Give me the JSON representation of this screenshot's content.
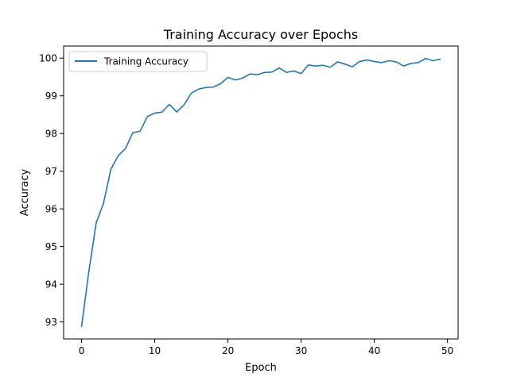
{
  "chart_data": {
    "type": "line",
    "title": "Training Accuracy over Epochs",
    "xlabel": "Epoch",
    "ylabel": "Accuracy",
    "xlim": [
      -2.45,
      51.45
    ],
    "ylim": [
      92.55,
      100.32
    ],
    "xticks": [
      0,
      10,
      20,
      30,
      40,
      50
    ],
    "yticks": [
      93,
      94,
      95,
      96,
      97,
      98,
      99,
      100
    ],
    "grid": false,
    "legend_position": "top-left",
    "series": [
      {
        "name": "Training Accuracy",
        "color": "#1f77b4",
        "x": [
          0,
          1,
          2,
          3,
          4,
          5,
          6,
          7,
          8,
          9,
          10,
          11,
          12,
          13,
          14,
          15,
          16,
          17,
          18,
          19,
          20,
          21,
          22,
          23,
          24,
          25,
          26,
          27,
          28,
          29,
          30,
          31,
          32,
          33,
          34,
          35,
          36,
          37,
          38,
          39,
          40,
          41,
          42,
          43,
          44,
          45,
          46,
          47,
          48,
          49
        ],
        "y": [
          92.88,
          94.35,
          95.63,
          96.15,
          97.05,
          97.41,
          97.6,
          98.02,
          98.06,
          98.45,
          98.54,
          98.57,
          98.77,
          98.57,
          98.76,
          99.07,
          99.18,
          99.22,
          99.23,
          99.32,
          99.49,
          99.42,
          99.47,
          99.58,
          99.56,
          99.62,
          99.63,
          99.74,
          99.62,
          99.66,
          99.59,
          99.82,
          99.79,
          99.81,
          99.76,
          99.9,
          99.84,
          99.77,
          99.91,
          99.95,
          99.91,
          99.88,
          99.93,
          99.9,
          99.79,
          99.86,
          99.88,
          99.99,
          99.93,
          99.97
        ]
      }
    ]
  }
}
